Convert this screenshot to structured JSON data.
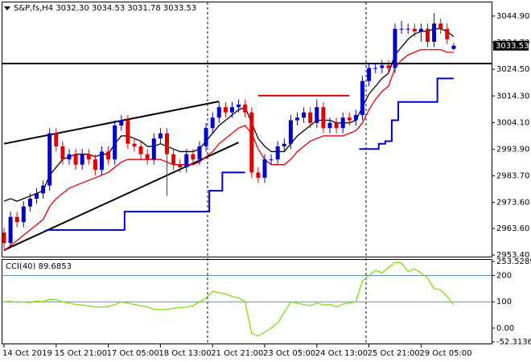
{
  "chart_data": [
    {
      "type": "candlestick",
      "title": "S&P,fs,H4 3032.30 3034.53 3031.78 3033.53",
      "categories": [
        "14 Oct 2019",
        null,
        null,
        null,
        null,
        null,
        null,
        null,
        "15 Oct 21:00",
        null,
        null,
        null,
        null,
        null,
        null,
        null,
        "17 Oct 05:00",
        null,
        null,
        null,
        null,
        null,
        null,
        null,
        "18 Oct 13:00",
        null,
        null,
        null,
        null,
        null,
        null,
        null,
        "21 Oct 21:00",
        null,
        null,
        null,
        null,
        null,
        null,
        null,
        "23 Oct 05:00",
        null,
        null,
        null,
        null,
        null,
        null,
        null,
        "24 Oct 13:00",
        null,
        null,
        null,
        null,
        null,
        null,
        null,
        "25 Oct 21:00",
        null,
        null,
        null,
        null,
        null,
        null,
        null,
        "29 Oct 05:00",
        null,
        null,
        null,
        null,
        null
      ],
      "open": [
        2962,
        2958,
        2968,
        2966,
        2972,
        2975,
        2977,
        2980,
        3000,
        2995,
        2990,
        2992,
        2988,
        2992,
        2990,
        2986,
        2993,
        2990,
        3003,
        3005,
        2996,
        2995,
        2992,
        2990,
        2998,
        3000,
        2992,
        2988,
        2987,
        2992,
        2990,
        2995,
        3002,
        3006,
        3010,
        3008,
        3010,
        3011,
        3008,
        2985,
        2983,
        2990,
        2990,
        2995,
        2996,
        3005,
        3006,
        3008,
        3004,
        3010,
        3002,
        3004,
        3002,
        3006,
        3005,
        3007,
        3020,
        3025,
        3025,
        3026,
        3025,
        3040,
        3040,
        3040,
        3039,
        3040,
        3035,
        3042,
        3040,
        3032.3
      ],
      "high": [
        2964,
        2970,
        2970,
        2974,
        2977,
        2979,
        2982,
        3002,
        3002,
        2997,
        2994,
        2994,
        2994,
        2994,
        2992,
        2995,
        2995,
        3005,
        3007,
        3007,
        2998,
        2997,
        2994,
        3000,
        3002,
        3002,
        2994,
        2990,
        2994,
        2994,
        2997,
        3004,
        3008,
        3012,
        3012,
        3012,
        3013,
        3013,
        3010,
        2987,
        2992,
        2992,
        2997,
        2998,
        3007,
        3008,
        3010,
        3010,
        3013,
        3012,
        3006,
        3006,
        3008,
        3008,
        3009,
        3022,
        3027,
        3027,
        3028,
        3028,
        3042,
        3043,
        3042,
        3042,
        3042,
        3042,
        3046,
        3044,
        3042,
        3034.53
      ],
      "low": [
        2956,
        2956,
        2964,
        2964,
        2970,
        2973,
        2975,
        2978,
        2993,
        2988,
        2988,
        2986,
        2986,
        2988,
        2984,
        2984,
        2988,
        2988,
        3001,
        2994,
        2993,
        2990,
        2988,
        2988,
        2996,
        2976,
        2986,
        2985,
        2985,
        2988,
        2988,
        2993,
        3000,
        3004,
        3006,
        3006,
        3008,
        3006,
        2983,
        2981,
        2981,
        2988,
        2988,
        2993,
        2994,
        3003,
        3004,
        3002,
        3002,
        3000,
        3000,
        3000,
        3000,
        3003,
        3003,
        3005,
        3018,
        3023,
        3023,
        3023,
        3023,
        3038,
        3038,
        3037,
        3035,
        3033,
        3033,
        3038,
        3034,
        3031.78
      ],
      "close": [
        2958,
        2968,
        2966,
        2972,
        2975,
        2977,
        2980,
        3000,
        2995,
        2990,
        2992,
        2988,
        2992,
        2990,
        2986,
        2993,
        2990,
        3003,
        3005,
        2996,
        2995,
        2992,
        2990,
        2998,
        3000,
        2992,
        2988,
        2987,
        2992,
        2990,
        2995,
        3002,
        3006,
        3010,
        3008,
        3010,
        3011,
        3008,
        2985,
        2983,
        2990,
        2990,
        2995,
        2996,
        3005,
        3006,
        3008,
        3004,
        3010,
        3002,
        3004,
        3002,
        3006,
        3005,
        3007,
        3020,
        3025,
        3025,
        3026,
        3025,
        3040,
        3040,
        3040,
        3039,
        3040,
        3035,
        3042,
        3040,
        3036,
        3033.53
      ],
      "up_color": "#0000cc",
      "down_color": "#e00000",
      "series": [
        {
          "color": "#000000",
          "values": [
            2974,
            2975,
            2974,
            2975,
            2976,
            2977,
            2978,
            2984,
            2987,
            2990,
            2991,
            2992,
            2992,
            2992,
            2991,
            2992,
            2992,
            2996,
            2999,
            2999,
            2998,
            2997,
            2995,
            2995,
            2996,
            2995,
            2994,
            2993,
            2993,
            2993,
            2994,
            2997,
            3000,
            3003,
            3005,
            3007,
            3009,
            3010,
            3004,
            2998,
            2995,
            2993,
            2993,
            2993,
            2996,
            2999,
            3001,
            3003,
            3005,
            3005,
            3005,
            3004,
            3004,
            3004,
            3005,
            3010,
            3015,
            3018,
            3021,
            3023,
            3030,
            3033,
            3036,
            3038,
            3039,
            3039,
            3040,
            3040,
            3039,
            3037
          ]
        },
        {
          "color": "#e00000",
          "values": [
            2955,
            2957,
            2959,
            2961,
            2963,
            2965,
            2967,
            2972,
            2975,
            2977,
            2979,
            2980,
            2981,
            2982,
            2983,
            2984,
            2985,
            2987,
            2989,
            2990,
            2990,
            2990,
            2990,
            2990,
            2990,
            2989,
            2988,
            2988,
            2988,
            2988,
            2989,
            2991,
            2993,
            2996,
            2998,
            3000,
            3002,
            3003,
            3000,
            2994,
            2990,
            2988,
            2988,
            2988,
            2990,
            2993,
            2995,
            2997,
            2998,
            2999,
            2999,
            2999,
            2999,
            3000,
            3001,
            3004,
            3009,
            3013,
            3016,
            3018,
            3025,
            3028,
            3030,
            3031,
            3032,
            3032,
            3032,
            3032,
            3031,
            3031
          ]
        },
        {
          "color": "#0000cc",
          "step": true,
          "values": [
            null,
            null,
            null,
            null,
            null,
            null,
            null,
            2963,
            2963,
            2963,
            2963,
            2963,
            2963,
            2963,
            2963,
            2963,
            2963,
            2963,
            2963,
            2970,
            2970,
            2970,
            2970,
            2970,
            2970,
            2970,
            2970,
            2970,
            2970,
            2970,
            2970,
            2970,
            2978,
            2978,
            2985,
            2985,
            2985,
            2985,
            null,
            null,
            null,
            null,
            null,
            null,
            null,
            null,
            null,
            null,
            null,
            null,
            null,
            null,
            null,
            null,
            null,
            2994,
            2994,
            2994,
            2996,
            2997,
            3005,
            3012,
            3012,
            3012,
            3012,
            3012,
            3012,
            3021,
            3021,
            3021
          ]
        }
      ],
      "lines": [
        {
          "color": "#000000",
          "x": [
            0,
            33
          ],
          "y": [
            2996,
            3012.2
          ]
        },
        {
          "color": "#000000",
          "x": [
            0,
            36
          ],
          "y": [
            2955.3,
            2996.5
          ]
        },
        {
          "color": "#e00000",
          "x": [
            39,
            53
          ],
          "y": [
            3014.4,
            3014.4
          ]
        }
      ],
      "hlines": [
        {
          "value": 3026.7,
          "color": "#000000"
        }
      ],
      "ylim": [
        2952.5,
        3050.4
      ],
      "yticks": [
        {
          "value": 3044.9,
          "label": "3044.90"
        },
        {
          "value": 3034.7,
          "label": "3034.70"
        },
        {
          "value": 3024.5,
          "label": "3024.50"
        },
        {
          "value": 3014.3,
          "label": "3014.30"
        },
        {
          "value": 3004.1,
          "label": "3004.10"
        },
        {
          "value": 2993.9,
          "label": "2993.90"
        },
        {
          "value": 2983.7,
          "label": "2983.70"
        },
        {
          "value": 2973.6,
          "label": "2973.60"
        },
        {
          "value": 2963.6,
          "label": "2963.60"
        },
        {
          "value": 2953.4,
          "label": "2953.40"
        }
      ]
    },
    {
      "type": "line",
      "title": "CCI(40) 89.6853",
      "color": "#7ee00a",
      "values": [
        100,
        102,
        98,
        100,
        97,
        103,
        100,
        110,
        108,
        100,
        95,
        90,
        88,
        85,
        80,
        80,
        82,
        90,
        100,
        95,
        90,
        85,
        80,
        72,
        70,
        72,
        75,
        78,
        80,
        85,
        100,
        115,
        140,
        135,
        130,
        120,
        115,
        100,
        -20,
        -30,
        -15,
        0,
        20,
        60,
        100,
        95,
        90,
        85,
        95,
        88,
        90,
        80,
        92,
        95,
        100,
        180,
        200,
        220,
        210,
        230,
        250,
        248,
        215,
        225,
        210,
        190,
        150,
        145,
        120,
        89.6853
      ],
      "hlines": [
        {
          "value": 200,
          "color": "#5b8fc9"
        },
        {
          "value": 100,
          "color": "#5b8fc9"
        }
      ],
      "ylim": [
        -52.3136,
        253.5289
      ],
      "yticks": [
        253.5289,
        200,
        100,
        {
          "value": 0,
          "label": "0.00"
        },
        -52.3136
      ]
    }
  ]
}
